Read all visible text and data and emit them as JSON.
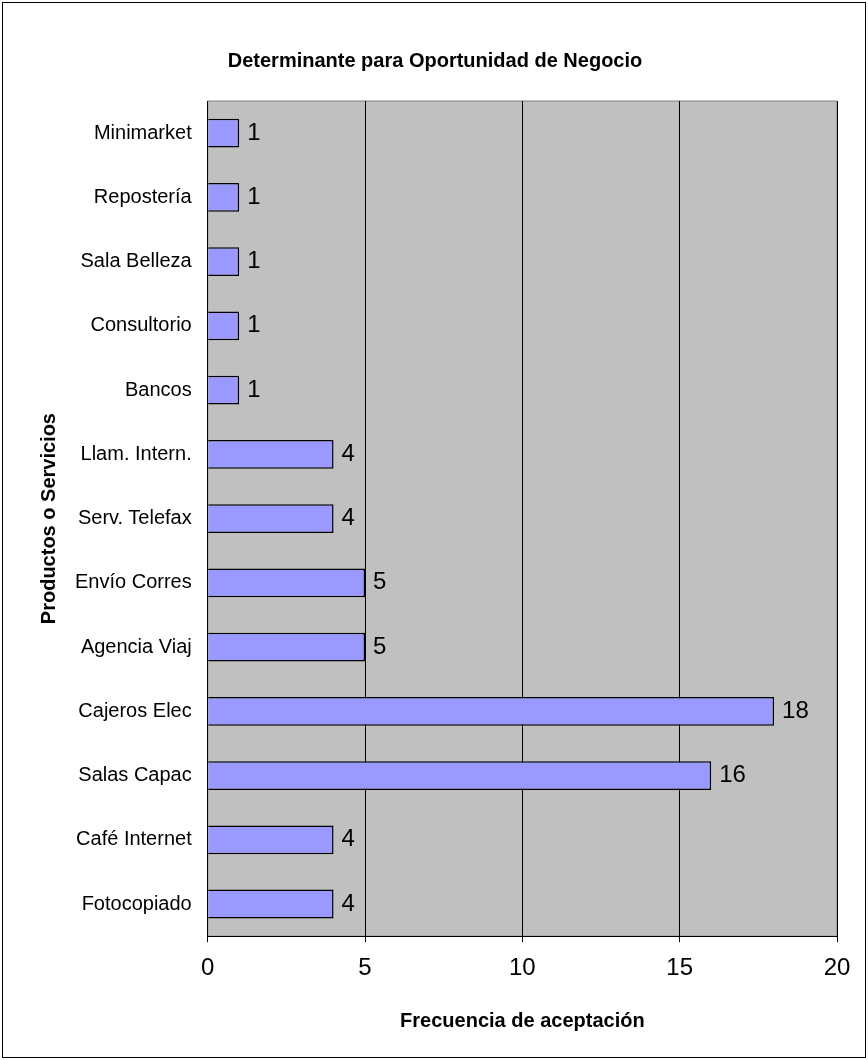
{
  "chart_data": {
    "type": "bar",
    "orientation": "horizontal",
    "title": "Determinante para Oportunidad de Negocio",
    "xlabel": "Frecuencia de aceptación",
    "ylabel": "Productos o Servicios",
    "categories": [
      "Minimarket",
      "Repostería",
      "Sala Belleza",
      "Consultorio",
      "Bancos",
      "Llam. Intern.",
      "Serv. Telefax",
      "Envío Corres",
      "Agencia Viaj",
      "Cajeros Elec",
      "Salas Capac",
      "Café Internet",
      "Fotocopiado"
    ],
    "values": [
      1,
      1,
      1,
      1,
      1,
      4,
      4,
      5,
      5,
      18,
      16,
      4,
      4
    ],
    "color": "#9999ff",
    "xlim": [
      0,
      20
    ],
    "xticks": [
      0,
      5,
      10,
      15,
      20
    ],
    "grid": "x",
    "legend": false,
    "data_labels": true
  }
}
